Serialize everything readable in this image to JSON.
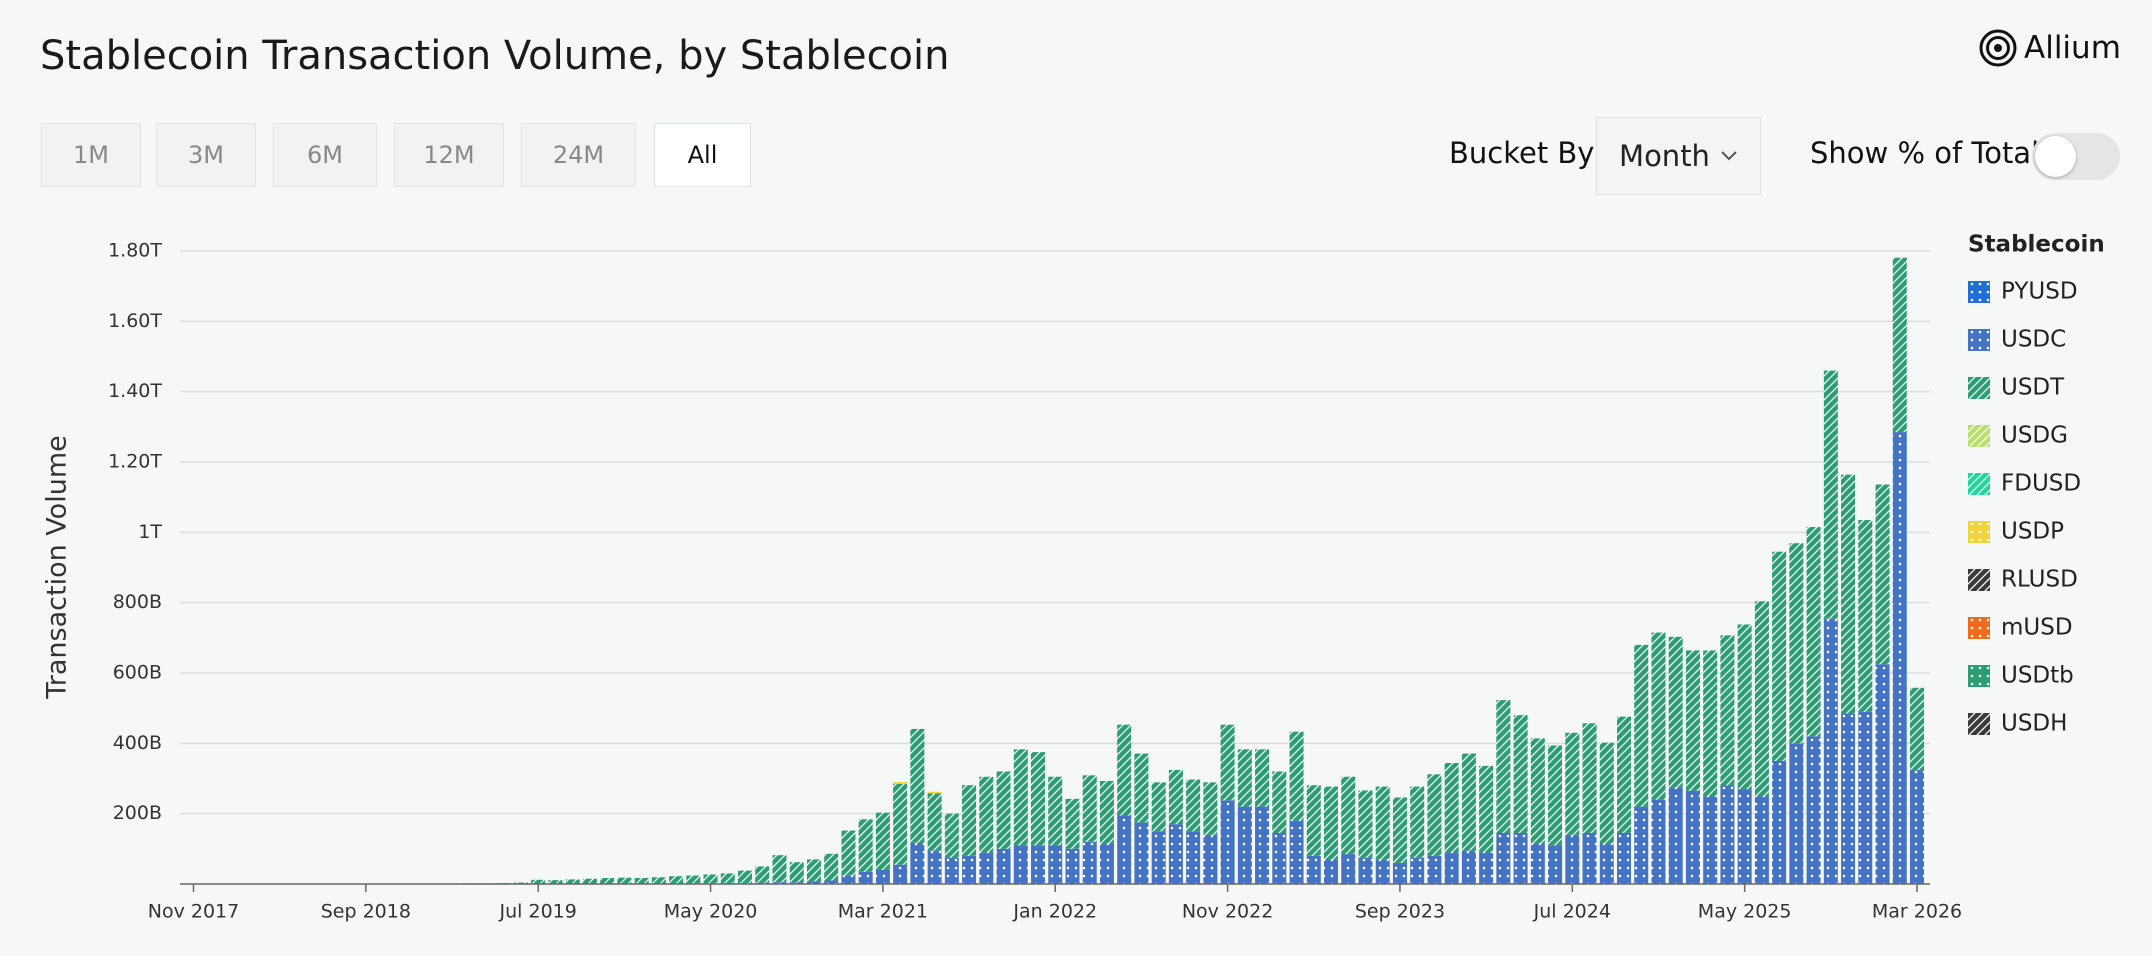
{
  "header": {
    "logo": "Allium"
  },
  "controls": {
    "ranges": [
      "1M",
      "3M",
      "6M",
      "12M",
      "24M",
      "All"
    ],
    "selected_range": 5,
    "bucket_label": "Bucket By",
    "bucket_value": "Month",
    "toggle_label": "Show % of Total",
    "toggle_on": false
  },
  "chart_data": {
    "type": "stacked-bar",
    "title": "Stablecoin Transaction Volume, by Stablecoin",
    "y_label": "Transaction Volume",
    "legend_title": "Stablecoin",
    "legend": "right",
    "grid": true,
    "categories": [
      "Nov 2017",
      null,
      null,
      null,
      null,
      null,
      null,
      null,
      null,
      null,
      "Sep 2018",
      null,
      null,
      null,
      null,
      null,
      null,
      null,
      null,
      null,
      "Jul 2019",
      null,
      null,
      null,
      null,
      null,
      null,
      null,
      null,
      null,
      "May 2020",
      null,
      null,
      null,
      null,
      null,
      null,
      null,
      null,
      null,
      "Mar 2021",
      null,
      null,
      null,
      null,
      null,
      null,
      null,
      null,
      null,
      "Jan 2022",
      null,
      null,
      null,
      null,
      null,
      null,
      null,
      null,
      null,
      "Nov 2022",
      null,
      null,
      null,
      null,
      null,
      null,
      null,
      null,
      null,
      "Sep 2023",
      null,
      null,
      null,
      null,
      null,
      null,
      null,
      null,
      null,
      "Jul 2024",
      null,
      null,
      null,
      null,
      null,
      null,
      null,
      null,
      null,
      "May 2025",
      null,
      null,
      null,
      null,
      null,
      null,
      null,
      null,
      null,
      "Mar 2026"
    ],
    "ylim": [
      0,
      1800
    ],
    "yticks": [
      {
        "value": 200,
        "label": "200B"
      },
      {
        "value": 400,
        "label": "400B"
      },
      {
        "value": 600,
        "label": "600B"
      },
      {
        "value": 800,
        "label": "800B"
      },
      {
        "value": 1000,
        "label": "1T"
      },
      {
        "value": 1200,
        "label": "1.20T"
      },
      {
        "value": 1400,
        "label": "1.40T"
      },
      {
        "value": 1600,
        "label": "1.60T"
      },
      {
        "value": 1800,
        "label": "1.80T"
      }
    ],
    "series": [
      {
        "name": "PYUSD",
        "color": "#1f6fd6",
        "pattern": "dots",
        "values": [
          0,
          0,
          0,
          0,
          0,
          0,
          0,
          0,
          0,
          0,
          0,
          0,
          0,
          0,
          0,
          0,
          0,
          0,
          0,
          0,
          0,
          0,
          0,
          0,
          0,
          0,
          0,
          0,
          0,
          0,
          0,
          0,
          0,
          0,
          0,
          0,
          0,
          0,
          0,
          0,
          0,
          0,
          0,
          0,
          0,
          0,
          0,
          0,
          0,
          0,
          0,
          0,
          0,
          0,
          0,
          0,
          0,
          0,
          0,
          0,
          0,
          0,
          0,
          0,
          0,
          0,
          0,
          0,
          0,
          0,
          0,
          0,
          0,
          0,
          0,
          0,
          0,
          0,
          0,
          0,
          0,
          0,
          0,
          0,
          0,
          0,
          0,
          0,
          0,
          0,
          0,
          0,
          0,
          0,
          0,
          0,
          0,
          0,
          0,
          0,
          0
        ]
      },
      {
        "name": "USDC",
        "color": "#4472c4",
        "pattern": "dots",
        "values": [
          0,
          0,
          0,
          0,
          0,
          0,
          0,
          0,
          0,
          0,
          0,
          0,
          0,
          0,
          0,
          0,
          0,
          0,
          0,
          0,
          0,
          0,
          0,
          0,
          1,
          1,
          1,
          1,
          2,
          2,
          2,
          3,
          3,
          4,
          5,
          5,
          8,
          10,
          25,
          35,
          40,
          55,
          117,
          95,
          75,
          80,
          90,
          100,
          110,
          110,
          110,
          100,
          120,
          115,
          195,
          175,
          150,
          170,
          150,
          140,
          238,
          220,
          220,
          145,
          180,
          80,
          70,
          85,
          75,
          70,
          60,
          75,
          80,
          90,
          95,
          90,
          145,
          145,
          115,
          110,
          140,
          145,
          115,
          145,
          220,
          240,
          275,
          265,
          250,
          280,
          270,
          250,
          350,
          400,
          420,
          754,
          485,
          490,
          625,
          1285,
          324
        ]
      },
      {
        "name": "USDT",
        "color": "#2a9d73",
        "pattern": "stripes",
        "values": [
          0,
          0,
          0,
          0,
          0,
          0,
          0,
          0,
          0,
          0,
          0,
          0,
          0,
          0,
          1,
          1,
          2,
          2,
          3,
          4,
          12,
          11,
          13,
          15,
          16,
          17,
          16,
          18,
          20,
          22,
          25,
          27,
          35,
          46,
          77,
          57,
          62,
          76,
          127,
          149,
          163,
          230,
          324,
          163,
          125,
          201,
          215,
          220,
          273,
          265,
          195,
          142,
          189,
          178,
          258,
          196,
          139,
          154,
          147,
          149,
          215,
          163,
          163,
          175,
          253,
          201,
          207,
          220,
          191,
          207,
          186,
          202,
          232,
          254,
          276,
          246,
          378,
          335,
          299,
          284,
          290,
          312,
          287,
          331,
          460,
          475,
          428,
          399,
          414,
          427,
          468,
          554,
          595,
          569,
          595,
          706,
          679,
          545,
          511,
          496,
          234
        ]
      },
      {
        "name": "USDG",
        "color": "#b9de6b",
        "pattern": "stripes",
        "values": [
          0,
          0,
          0,
          0,
          0,
          0,
          0,
          0,
          0,
          0,
          0,
          0,
          0,
          0,
          0,
          0,
          0,
          0,
          0,
          0,
          0,
          0,
          0,
          0,
          0,
          0,
          0,
          0,
          0,
          0,
          0,
          0,
          0,
          0,
          0,
          0,
          0,
          0,
          0,
          0,
          0,
          0,
          0,
          0,
          0,
          0,
          0,
          0,
          0,
          0,
          0,
          0,
          0,
          0,
          0,
          0,
          0,
          0,
          0,
          0,
          0,
          0,
          0,
          0,
          0,
          0,
          0,
          0,
          0,
          0,
          0,
          0,
          0,
          0,
          0,
          0,
          0,
          0,
          0,
          0,
          0,
          0,
          0,
          0,
          0,
          0,
          0,
          0,
          0,
          0,
          0,
          0,
          0,
          0,
          0,
          0,
          0,
          0,
          0,
          0,
          0
        ]
      },
      {
        "name": "FDUSD",
        "color": "#1fd69b",
        "pattern": "stripes",
        "values": [
          0,
          0,
          0,
          0,
          0,
          0,
          0,
          0,
          0,
          0,
          0,
          0,
          0,
          0,
          0,
          0,
          0,
          0,
          0,
          0,
          0,
          0,
          0,
          0,
          0,
          0,
          0,
          0,
          0,
          0,
          0,
          0,
          0,
          0,
          0,
          0,
          0,
          0,
          0,
          0,
          0,
          0,
          0,
          0,
          0,
          0,
          0,
          0,
          0,
          0,
          0,
          0,
          0,
          0,
          0,
          0,
          0,
          0,
          0,
          0,
          0,
          0,
          0,
          0,
          0,
          0,
          0,
          0,
          0,
          0,
          0,
          0,
          0,
          0,
          0,
          0,
          0,
          0,
          0,
          0,
          0,
          0,
          0,
          0,
          0,
          0,
          0,
          0,
          0,
          0,
          0,
          0,
          0,
          0,
          0,
          0,
          0,
          0,
          0,
          0,
          0
        ]
      },
      {
        "name": "USDP",
        "color": "#f2d43a",
        "pattern": "dots",
        "values": [
          0,
          0,
          0,
          0,
          0,
          0,
          0,
          0,
          0,
          0,
          0,
          0,
          0,
          0,
          0,
          0,
          0,
          0,
          0,
          0,
          0,
          0,
          0,
          0,
          0,
          0,
          0,
          0,
          0,
          0,
          0,
          0,
          0,
          0,
          0,
          0,
          0,
          0,
          0,
          0,
          0,
          5,
          0,
          4,
          0,
          0,
          0,
          0,
          0,
          0,
          0,
          0,
          0,
          0,
          0,
          0,
          0,
          0,
          0,
          0,
          0,
          0,
          0,
          0,
          0,
          0,
          0,
          0,
          0,
          0,
          0,
          0,
          0,
          0,
          0,
          0,
          0,
          0,
          0,
          0,
          0,
          0,
          0,
          0,
          0,
          0,
          0,
          0,
          0,
          0,
          0,
          0,
          0,
          0,
          0,
          0,
          0,
          0,
          0,
          0,
          0
        ]
      },
      {
        "name": "RLUSD",
        "color": "#3a3a3a",
        "pattern": "stripes",
        "values": [
          0,
          0,
          0,
          0,
          0,
          0,
          0,
          0,
          0,
          0,
          0,
          0,
          0,
          0,
          0,
          0,
          0,
          0,
          0,
          0,
          0,
          0,
          0,
          0,
          0,
          0,
          0,
          0,
          0,
          0,
          0,
          0,
          0,
          0,
          0,
          0,
          0,
          0,
          0,
          0,
          0,
          0,
          0,
          0,
          0,
          0,
          0,
          0,
          0,
          0,
          0,
          0,
          0,
          0,
          0,
          0,
          0,
          0,
          0,
          0,
          0,
          0,
          0,
          0,
          0,
          0,
          0,
          0,
          0,
          0,
          0,
          0,
          0,
          0,
          0,
          0,
          0,
          0,
          0,
          0,
          0,
          0,
          0,
          0,
          0,
          0,
          0,
          0,
          0,
          0,
          0,
          0,
          0,
          0,
          0,
          0,
          0,
          0,
          0,
          0,
          0
        ]
      },
      {
        "name": "mUSD",
        "color": "#f26a1b",
        "pattern": "dots",
        "values": [
          0,
          0,
          0,
          0,
          0,
          0,
          0,
          0,
          0,
          0,
          0,
          0,
          0,
          0,
          0,
          0,
          0,
          0,
          0,
          0,
          0,
          0,
          0,
          0,
          0,
          0,
          0,
          0,
          0,
          0,
          0,
          0,
          0,
          0,
          0,
          0,
          0,
          0,
          0,
          0,
          0,
          0,
          0,
          0,
          0,
          0,
          0,
          0,
          0,
          0,
          0,
          0,
          0,
          0,
          0,
          0,
          0,
          0,
          0,
          0,
          0,
          0,
          0,
          0,
          0,
          0,
          0,
          0,
          0,
          0,
          0,
          0,
          0,
          0,
          0,
          0,
          0,
          0,
          0,
          0,
          0,
          0,
          0,
          0,
          0,
          0,
          0,
          0,
          0,
          0,
          0,
          0,
          0,
          0,
          0,
          0,
          0,
          0,
          0,
          0,
          0
        ]
      },
      {
        "name": "USDtb",
        "color": "#2a9d73",
        "pattern": "dots",
        "values": [
          0,
          0,
          0,
          0,
          0,
          0,
          0,
          0,
          0,
          0,
          0,
          0,
          0,
          0,
          0,
          0,
          0,
          0,
          0,
          0,
          0,
          0,
          0,
          0,
          0,
          0,
          0,
          0,
          0,
          0,
          0,
          0,
          0,
          0,
          0,
          0,
          0,
          0,
          0,
          0,
          0,
          0,
          0,
          0,
          0,
          0,
          0,
          0,
          0,
          0,
          0,
          0,
          0,
          0,
          0,
          0,
          0,
          0,
          0,
          0,
          0,
          0,
          0,
          0,
          0,
          0,
          0,
          0,
          0,
          0,
          0,
          0,
          0,
          0,
          0,
          0,
          0,
          0,
          0,
          0,
          0,
          0,
          0,
          0,
          0,
          0,
          0,
          0,
          0,
          0,
          0,
          0,
          0,
          0,
          0,
          0,
          0,
          0,
          0,
          0,
          0
        ]
      },
      {
        "name": "USDH",
        "color": "#3a3a3a",
        "pattern": "stripes",
        "values": [
          0,
          0,
          0,
          0,
          0,
          0,
          0,
          0,
          0,
          0,
          0,
          0,
          0,
          0,
          0,
          0,
          0,
          0,
          0,
          0,
          0,
          0,
          0,
          0,
          0,
          0,
          0,
          0,
          0,
          0,
          0,
          0,
          0,
          0,
          0,
          0,
          0,
          0,
          0,
          0,
          0,
          0,
          0,
          0,
          0,
          0,
          0,
          0,
          0,
          0,
          0,
          0,
          0,
          0,
          0,
          0,
          0,
          0,
          0,
          0,
          0,
          0,
          0,
          0,
          0,
          0,
          0,
          0,
          0,
          0,
          0,
          0,
          0,
          0,
          0,
          0,
          0,
          0,
          0,
          0,
          0,
          0,
          0,
          0,
          0,
          0,
          0,
          0,
          0,
          0,
          0,
          0,
          0,
          0,
          0,
          0,
          0,
          0,
          0,
          0,
          0
        ]
      }
    ]
  }
}
